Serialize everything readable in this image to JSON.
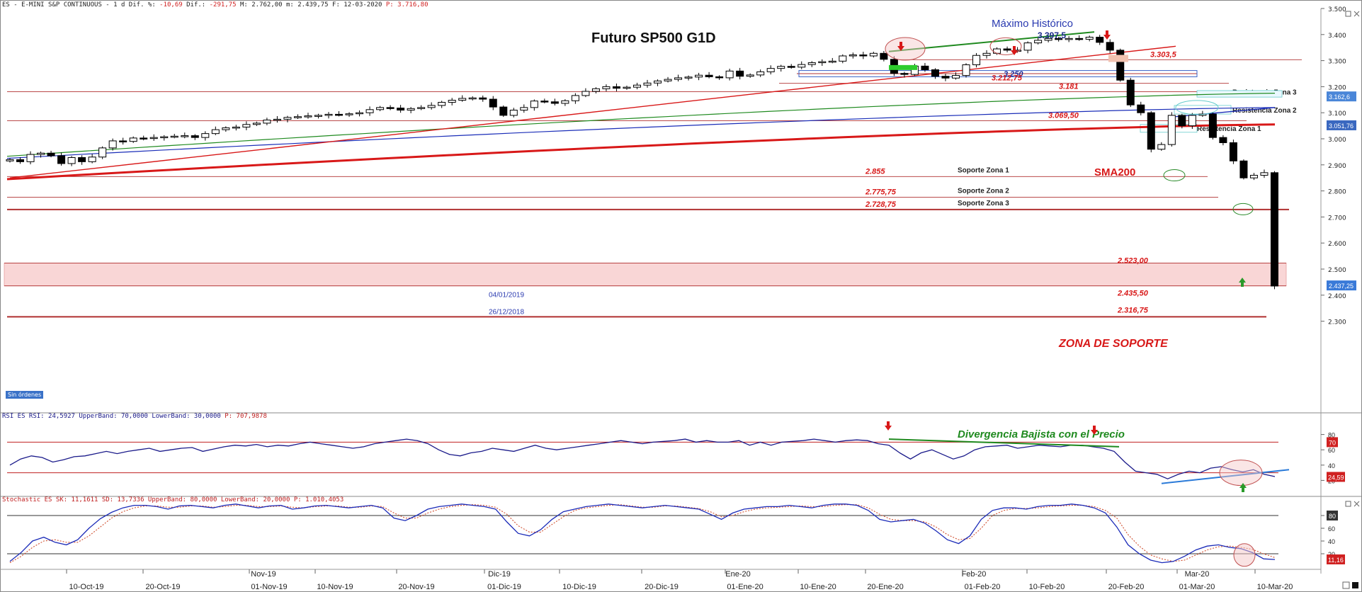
{
  "header": {
    "symbol": "ES - E-MINI S&P CONTINUOUS -  1 d Dif. %: ",
    "dif_pct": "-10,69",
    "dif_label": " Dif.: ",
    "dif": "-291,75",
    "ohlc": " M: 2.762,00 m: 2.439,75 F: 12-03-2020 ",
    "p_label": "P: 3.716,80",
    "no_orders": "Sin órdenes"
  },
  "rsi_header": {
    "text": "RSI ES RSI: 24,5927 UpperBand: 70,0000 LowerBand: 30,0000 ",
    "p": "P: 707,9878"
  },
  "stoch_header": {
    "text": "Stochastic ES SK: 11,1611 SD: 13,7336 UpperBand: 80,0000 LowerBand: 20,0000 ",
    "p": "P: 1.010,4053"
  },
  "chart_data": [
    {
      "type": "candlestick",
      "title": "Futuro SP500 G1D",
      "ylim": [
        2250,
        3500
      ],
      "y_ticks": [
        "3.500",
        "3.400",
        "3.300",
        "3.200",
        "3.100",
        "3.000",
        "2.900",
        "2.800",
        "2.700",
        "2.600",
        "2.500",
        "2.400",
        "2.300"
      ],
      "y_tick_values": [
        3500,
        3400,
        3300,
        3200,
        3100,
        3000,
        2900,
        2800,
        2700,
        2600,
        2500,
        2400,
        2300
      ],
      "x_labels": [
        "10-Oct-19",
        "20-Oct-19",
        "01-Nov-19",
        "10-Nov-19",
        "20-Nov-19",
        "01-Dic-19",
        "10-Dic-19",
        "20-Dic-19",
        "01-Ene-20",
        "10-Ene-20",
        "20-Ene-20",
        "01-Feb-20",
        "10-Feb-20",
        "20-Feb-20",
        "01-Mar-20",
        "10-Mar-20"
      ],
      "x_major_labels": [
        "Nov-19",
        "Dic-19",
        "Ene-20",
        "Feb-20",
        "Mar-20"
      ],
      "closes": [
        2920,
        2912,
        2940,
        2945,
        2935,
        2905,
        2928,
        2912,
        2930,
        2965,
        2992,
        2990,
        3003,
        3002,
        3005,
        3008,
        3010,
        3012,
        3005,
        3020,
        3035,
        3042,
        3045,
        3055,
        3060,
        3072,
        3075,
        3082,
        3085,
        3088,
        3090,
        3094,
        3092,
        3096,
        3100,
        3112,
        3120,
        3118,
        3110,
        3116,
        3120,
        3128,
        3140,
        3148,
        3155,
        3157,
        3152,
        3122,
        3090,
        3110,
        3120,
        3145,
        3142,
        3136,
        3146,
        3166,
        3182,
        3192,
        3200,
        3194,
        3198,
        3206,
        3214,
        3222,
        3228,
        3234,
        3237,
        3244,
        3238,
        3234,
        3260,
        3240,
        3245,
        3257,
        3270,
        3278,
        3275,
        3285,
        3292,
        3296,
        3298,
        3318,
        3322,
        3318,
        3328,
        3305,
        3251,
        3247,
        3279,
        3265,
        3240,
        3233,
        3243,
        3284,
        3320,
        3328,
        3345,
        3340,
        3340,
        3368,
        3378,
        3385,
        3383,
        3385,
        3382,
        3390,
        3370,
        3340,
        3225,
        3130,
        3100,
        2960,
        2978,
        3090,
        3050,
        3090,
        3095,
        3005,
        2985,
        2915,
        2850,
        2860,
        2870,
        2435
      ],
      "sma_red_start": 2845,
      "sma_red_end": 3055,
      "sma_blue_start": 2925,
      "sma_blue_end": 3120,
      "sma_green_start": 2933,
      "sma_green_end": 3175,
      "levels": [
        {
          "label": "3.303,5",
          "value": 3303.5
        },
        {
          "label": "3.250",
          "value": 3250
        },
        {
          "label": "3.212,75",
          "value": 3212.75
        },
        {
          "label": "3.181",
          "value": 3181
        },
        {
          "label": "3.069,50",
          "value": 3069.5
        },
        {
          "label": "2.855",
          "value": 2855
        },
        {
          "label": "2.775,75",
          "value": 2775.75
        },
        {
          "label": "2.728,75",
          "value": 2728.75
        },
        {
          "label": "2.523,00",
          "value": 2523
        },
        {
          "label": "2.435,50",
          "value": 2435.5
        },
        {
          "label": "2.316,75",
          "value": 2316.75
        }
      ],
      "annotations": {
        "ath_title": "Máximo Histórico",
        "ath_value": "3.397,5",
        "sma200": "SMA200",
        "support_zone": "ZONA DE SOPORTE",
        "support_1": "Soporte Zona 1",
        "support_2": "Soporte Zona 2",
        "support_3": "Soporte Zona 3",
        "resistance_1": "Resistencia Zona 1",
        "resistance_2": "Resistencia Zona 2",
        "resistance_3": "Resistencia Zona 3",
        "date_1": "04/01/2019",
        "date_2": "26/12/2018"
      },
      "price_badges": [
        {
          "label": "3.162,6",
          "value": 3162.6,
          "color": "#4a86d8"
        },
        {
          "label": "3.051,76",
          "value": 3051.76,
          "color": "#3a68c0"
        },
        {
          "label": "2.437,25",
          "value": 2437.25,
          "color": "#3a7ad8"
        }
      ]
    },
    {
      "type": "line",
      "name_text": "RSI",
      "ylim": [
        0,
        100
      ],
      "y_ticks": [
        "80",
        "60",
        "40",
        "20"
      ],
      "upper_band": 70,
      "lower_band": 30,
      "last_values": {
        "upper": "70",
        "current": "24,59"
      },
      "annotation": "Divergencia Bajista con el Precio",
      "values": [
        40,
        48,
        52,
        50,
        44,
        47,
        51,
        52,
        55,
        58,
        55,
        58,
        60,
        62,
        58,
        60,
        62,
        63,
        58,
        61,
        64,
        66,
        65,
        67,
        64,
        66,
        65,
        68,
        70,
        68,
        66,
        64,
        62,
        64,
        68,
        70,
        72,
        74,
        72,
        68,
        60,
        54,
        52,
        56,
        58,
        62,
        60,
        58,
        62,
        66,
        62,
        60,
        62,
        64,
        66,
        68,
        70,
        72,
        70,
        68,
        70,
        71,
        72,
        74,
        70,
        72,
        70,
        70,
        72,
        66,
        70,
        66,
        70,
        71,
        72,
        74,
        72,
        70,
        72,
        73,
        72,
        68,
        66,
        56,
        48,
        56,
        60,
        54,
        48,
        52,
        60,
        64,
        65,
        66,
        62,
        64,
        66,
        65,
        64,
        66,
        66,
        64,
        62,
        58,
        44,
        32,
        30,
        28,
        22,
        28,
        32,
        30,
        36,
        38,
        34,
        31,
        34,
        28,
        25
      ]
    },
    {
      "type": "line",
      "name_text": "Stochastic",
      "ylim": [
        0,
        100
      ],
      "y_ticks": [
        "80",
        "60",
        "40",
        "20"
      ],
      "upper_band": 80,
      "lower_band": 20,
      "last_values": {
        "upper": "80",
        "current": "11,16"
      },
      "sk": [
        8,
        22,
        40,
        46,
        38,
        34,
        42,
        60,
        75,
        85,
        92,
        96,
        96,
        94,
        90,
        95,
        96,
        94,
        92,
        96,
        98,
        95,
        92,
        95,
        96,
        90,
        92,
        95,
        96,
        94,
        92,
        94,
        96,
        92,
        76,
        72,
        80,
        90,
        94,
        96,
        98,
        96,
        94,
        90,
        70,
        52,
        48,
        58,
        74,
        86,
        90,
        94,
        96,
        98,
        96,
        94,
        92,
        94,
        96,
        94,
        92,
        90,
        82,
        74,
        84,
        90,
        92,
        94,
        94,
        96,
        94,
        92,
        96,
        98,
        98,
        96,
        88,
        74,
        70,
        72,
        74,
        68,
        56,
        42,
        36,
        48,
        74,
        88,
        92,
        92,
        90,
        94,
        96,
        96,
        98,
        96,
        92,
        84,
        62,
        34,
        20,
        10,
        6,
        8,
        16,
        26,
        32,
        34,
        30,
        28,
        22,
        12,
        11
      ],
      "sd": [
        6,
        16,
        30,
        40,
        42,
        38,
        38,
        48,
        62,
        76,
        86,
        92,
        95,
        95,
        93,
        93,
        95,
        95,
        93,
        94,
        96,
        96,
        94,
        94,
        95,
        93,
        92,
        94,
        95,
        95,
        93,
        93,
        95,
        94,
        84,
        76,
        76,
        84,
        90,
        94,
        96,
        97,
        96,
        93,
        82,
        64,
        54,
        54,
        66,
        78,
        88,
        92,
        94,
        96,
        97,
        95,
        93,
        93,
        95,
        95,
        93,
        91,
        86,
        78,
        80,
        86,
        90,
        92,
        93,
        94,
        95,
        94,
        94,
        96,
        97,
        97,
        92,
        82,
        74,
        72,
        72,
        70,
        62,
        50,
        42,
        44,
        60,
        80,
        88,
        91,
        91,
        92,
        94,
        95,
        96,
        96,
        94,
        88,
        76,
        50,
        32,
        18,
        12,
        8,
        10,
        18,
        26,
        31,
        32,
        30,
        27,
        20,
        14
      ]
    }
  ],
  "colors": {
    "sma_red": "#d81818",
    "sma_blue": "#1a2db8",
    "sma_green": "#1f8a1f",
    "resistance_line": "#b03030",
    "support_zone_fill": "#f9d6d6",
    "annotation_red": "#d81818",
    "title_blue": "#2a3ab0",
    "divergence_green": "#1f8a1f"
  }
}
